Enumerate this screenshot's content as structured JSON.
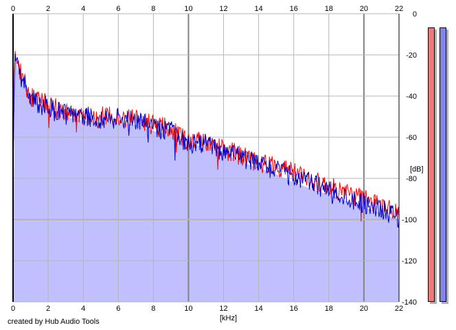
{
  "credit": "created by Hub Audio Tools",
  "colors": {
    "fill": "#c0c0ff",
    "left_channel": "#ff0000",
    "right_channel": "#0000c8",
    "grid": "#b4b4b4",
    "grid_major": "#828282",
    "meter_left": "#f07878",
    "meter_right": "#8282f0"
  },
  "meters": {
    "left_level": 1.0,
    "right_level": 1.0
  },
  "chart_data": {
    "type": "line",
    "title": "",
    "xlabel": "[kHz]",
    "ylabel": "[dB]",
    "xlim": [
      0,
      22
    ],
    "ylim": [
      -140,
      0
    ],
    "x_ticks": [
      "0",
      "2",
      "4",
      "6",
      "8",
      "10",
      "12",
      "14",
      "16",
      "18",
      "20",
      "22"
    ],
    "y_ticks": [
      "0",
      "-20",
      "-40",
      "-60",
      "-80",
      "-100",
      "-120",
      "-140"
    ],
    "grid": true,
    "x": [
      0,
      0.1,
      0.3,
      0.6,
      1,
      1.5,
      2,
      3,
      4,
      5,
      6,
      7,
      8,
      9,
      10,
      11,
      12,
      13,
      14,
      15,
      16,
      17,
      18,
      19,
      20,
      21,
      22
    ],
    "series": [
      {
        "values": [
          -74,
          -18,
          -26,
          -33,
          -40,
          -43,
          -44,
          -48,
          -50,
          -50,
          -50,
          -51,
          -54,
          -56,
          -62,
          -62,
          -66,
          -69,
          -72,
          -74,
          -77,
          -81,
          -84,
          -87,
          -90,
          -93,
          -97
        ]
      },
      {
        "values": [
          -74,
          -19,
          -27,
          -34,
          -40,
          -44,
          -45,
          -49,
          -50,
          -51,
          -51,
          -52,
          -55,
          -57,
          -63,
          -63,
          -67,
          -70,
          -73,
          -76,
          -79,
          -82,
          -86,
          -89,
          -92,
          -95,
          -99
        ]
      }
    ],
    "fill_envelope": [
      -140,
      -20,
      -28,
      -34,
      -40,
      -44,
      -46,
      -50,
      -52,
      -53,
      -53,
      -54,
      -57,
      -59,
      -64,
      -64,
      -68,
      -72,
      -75,
      -78,
      -82,
      -85,
      -88,
      -91,
      -94,
      -97,
      -100
    ]
  }
}
